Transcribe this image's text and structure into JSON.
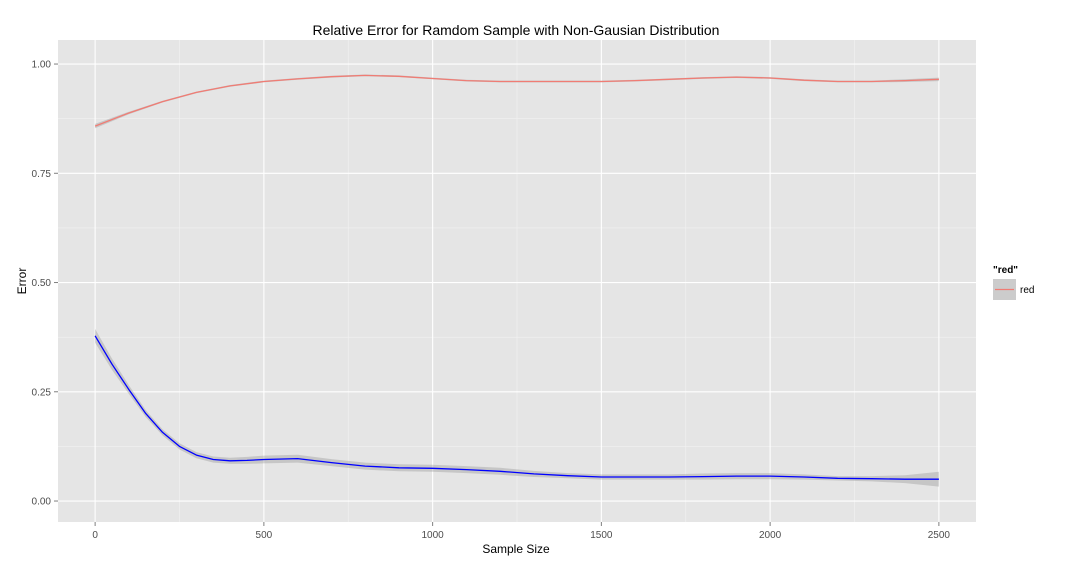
{
  "chart_data": {
    "type": "line",
    "title": "Relative Error for Ramdom Sample with Non-Gausian Distribution",
    "xlabel": "Sample Size",
    "ylabel": "Error",
    "xlim": [
      -110,
      2610
    ],
    "ylim": [
      -0.048,
      1.055
    ],
    "x_ticks": [
      0,
      500,
      1000,
      1500,
      2000,
      2500
    ],
    "y_ticks": [
      0.0,
      0.25,
      0.5,
      0.75,
      1.0
    ],
    "x_tick_labels": [
      "0",
      "500",
      "1000",
      "1500",
      "2000",
      "2500"
    ],
    "y_tick_labels": [
      "0.00",
      "0.25",
      "0.50",
      "0.75",
      "1.00"
    ],
    "grid": true,
    "background_color": "#e5e5e5",
    "grid_color": "#ffffff",
    "legend": {
      "title": "\"red\"",
      "position": "right",
      "entries": [
        {
          "label": "red",
          "color": "#f07c74"
        }
      ]
    },
    "series": [
      {
        "name": "red",
        "color": "#f07c74",
        "x": [
          0,
          100,
          200,
          300,
          400,
          500,
          600,
          700,
          800,
          900,
          1000,
          1100,
          1200,
          1300,
          1400,
          1500,
          1600,
          1700,
          1800,
          1900,
          2000,
          2100,
          2200,
          2300,
          2400,
          2500
        ],
        "y": [
          0.858,
          0.888,
          0.914,
          0.935,
          0.95,
          0.96,
          0.966,
          0.971,
          0.974,
          0.972,
          0.967,
          0.962,
          0.96,
          0.96,
          0.96,
          0.96,
          0.962,
          0.965,
          0.968,
          0.97,
          0.968,
          0.963,
          0.96,
          0.96,
          0.962,
          0.965
        ],
        "band": [
          0.005,
          0.003,
          0.002,
          0.002,
          0.002,
          0.002,
          0.002,
          0.002,
          0.002,
          0.002,
          0.002,
          0.002,
          0.002,
          0.002,
          0.002,
          0.002,
          0.002,
          0.002,
          0.002,
          0.002,
          0.002,
          0.002,
          0.002,
          0.002,
          0.003,
          0.004
        ]
      },
      {
        "name": "",
        "color": "#0000ff",
        "x": [
          0,
          50,
          100,
          150,
          200,
          250,
          300,
          350,
          400,
          450,
          500,
          600,
          700,
          800,
          900,
          1000,
          1100,
          1200,
          1300,
          1400,
          1500,
          1600,
          1700,
          1800,
          1900,
          2000,
          2100,
          2200,
          2300,
          2400,
          2500
        ],
        "y": [
          0.378,
          0.313,
          0.255,
          0.2,
          0.157,
          0.125,
          0.105,
          0.095,
          0.092,
          0.093,
          0.095,
          0.097,
          0.088,
          0.08,
          0.076,
          0.075,
          0.072,
          0.068,
          0.062,
          0.058,
          0.055,
          0.055,
          0.055,
          0.056,
          0.057,
          0.057,
          0.055,
          0.052,
          0.051,
          0.05,
          0.05
        ],
        "band": [
          0.016,
          0.013,
          0.01,
          0.008,
          0.007,
          0.007,
          0.007,
          0.007,
          0.007,
          0.008,
          0.009,
          0.009,
          0.008,
          0.008,
          0.008,
          0.008,
          0.008,
          0.008,
          0.007,
          0.006,
          0.006,
          0.006,
          0.006,
          0.007,
          0.007,
          0.007,
          0.006,
          0.005,
          0.006,
          0.009,
          0.017
        ]
      }
    ]
  }
}
